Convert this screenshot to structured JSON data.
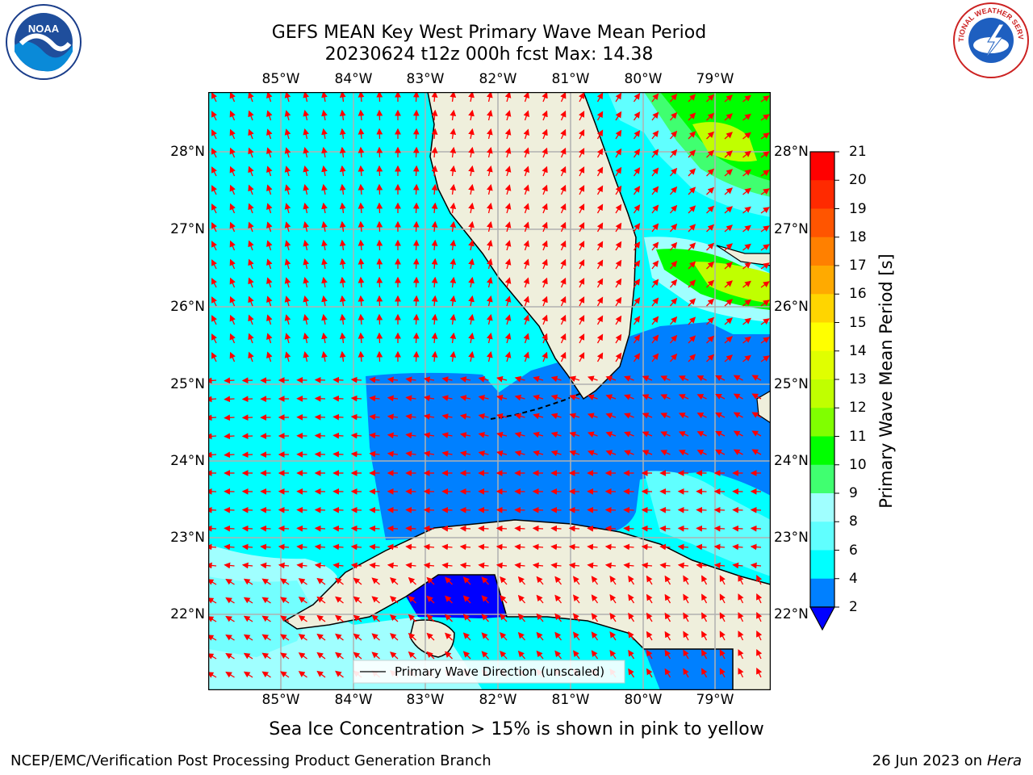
{
  "title_line1": "GEFS MEAN Key West Primary Wave Mean Period",
  "title_line2": "20230624 t12z 000h fcst   Max: 14.38",
  "lon_ticks": [
    "85°W",
    "84°W",
    "83°W",
    "82°W",
    "81°W",
    "80°W",
    "79°W"
  ],
  "lat_ticks": [
    "28°N",
    "27°N",
    "26°N",
    "25°N",
    "24°N",
    "23°N",
    "22°N"
  ],
  "legend_label": "Primary Wave Direction (unscaled)",
  "colorbar": {
    "label": "Primary Wave Mean Period [s]",
    "ticks": [
      "21",
      "20",
      "19",
      "18",
      "17",
      "16",
      "15",
      "14",
      "13",
      "12",
      "11",
      "10",
      "9",
      "8",
      "6",
      "4",
      "2"
    ],
    "colors": [
      "#ff0000",
      "#ff2a00",
      "#ff5500",
      "#ff8000",
      "#ffaa00",
      "#ffd500",
      "#ffff00",
      "#e0ff00",
      "#c0ff00",
      "#80ff00",
      "#00ff00",
      "#40ff70",
      "#a0ffff",
      "#60ffff",
      "#00ffff",
      "#0080ff",
      "#0000ff"
    ]
  },
  "caption": "Sea Ice Concentration > 15% is shown in pink to yellow",
  "footer_left": "NCEP/EMC/Verification Post Processing Product Generation Branch",
  "footer_right_date": "26 Jun 2023 on",
  "footer_right_host": "Hera",
  "logos": {
    "noaa_text": "NOAA",
    "nws_text": "NATIONAL WEATHER SERVICE"
  }
}
